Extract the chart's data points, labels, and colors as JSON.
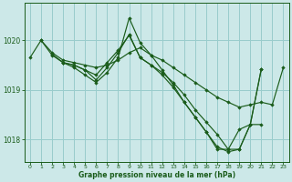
{
  "background_color": "#cce8e8",
  "grid_color": "#99cccc",
  "line_color": "#1a5c1a",
  "marker_color": "#1a5c1a",
  "xlabel": "Graphe pression niveau de la mer (hPa)",
  "xlabel_color": "#1a5c1a",
  "tick_color": "#1a5c1a",
  "axis_color": "#1a5c1a",
  "xlim": [
    -0.5,
    23.5
  ],
  "ylim": [
    1017.55,
    1020.75
  ],
  "yticks": [
    1018,
    1019,
    1020
  ],
  "xticks": [
    0,
    1,
    2,
    3,
    4,
    5,
    6,
    7,
    8,
    9,
    10,
    11,
    12,
    13,
    14,
    15,
    16,
    17,
    18,
    19,
    20,
    21,
    22,
    23
  ],
  "series": [
    {
      "x": [
        0,
        1,
        2,
        3,
        4,
        5,
        6,
        7,
        8,
        9,
        10,
        11,
        12,
        13,
        14,
        15,
        16,
        17,
        18,
        19,
        20,
        21,
        22,
        23
      ],
      "y": [
        1019.65,
        1020.0,
        1019.75,
        1019.6,
        1019.55,
        1019.5,
        1019.45,
        1019.5,
        1019.6,
        1019.75,
        1019.85,
        1019.7,
        1019.6,
        1019.45,
        1019.3,
        1019.15,
        1019.0,
        1018.85,
        1018.75,
        1018.65,
        1018.7,
        1018.75,
        1018.7,
        1019.45
      ]
    },
    {
      "x": [
        1,
        2,
        3,
        4,
        5,
        6,
        7,
        8,
        9,
        10,
        11,
        12,
        13,
        14,
        15,
        16,
        17,
        18,
        19,
        20,
        21
      ],
      "y": [
        1020.0,
        1019.7,
        1019.55,
        1019.5,
        1019.4,
        1019.3,
        1019.55,
        1019.8,
        1020.1,
        1019.65,
        1019.5,
        1019.35,
        1019.15,
        1018.9,
        1018.6,
        1018.35,
        1018.1,
        1017.8,
        1017.8,
        1018.3,
        1018.3
      ]
    },
    {
      "x": [
        2,
        3,
        4,
        5,
        6,
        7,
        8,
        9,
        10,
        11,
        12,
        13,
        14,
        15,
        16,
        17,
        18,
        19,
        20,
        21
      ],
      "y": [
        1019.72,
        1019.55,
        1019.5,
        1019.4,
        1019.2,
        1019.45,
        1019.75,
        1020.12,
        1019.65,
        1019.5,
        1019.3,
        1019.05,
        1018.75,
        1018.45,
        1018.15,
        1017.8,
        1017.8,
        1018.2,
        1018.3,
        1019.42
      ]
    },
    {
      "x": [
        3,
        4,
        5,
        6,
        7,
        8,
        9,
        10,
        11,
        12,
        13,
        14,
        15,
        16,
        17,
        18,
        19,
        20,
        21
      ],
      "y": [
        1019.55,
        1019.45,
        1019.3,
        1019.15,
        1019.35,
        1019.65,
        1020.45,
        1019.95,
        1019.7,
        1019.4,
        1019.1,
        1018.75,
        1018.45,
        1018.15,
        1017.85,
        1017.75,
        1017.8,
        1018.3,
        1019.42
      ]
    }
  ]
}
